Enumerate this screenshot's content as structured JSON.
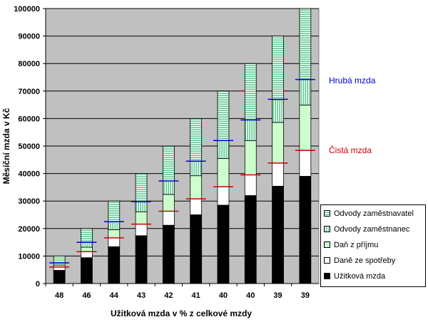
{
  "chart_data": {
    "type": "bar",
    "stacked": true,
    "ylabel": "Měsíční mzda v Kč",
    "xlabel": "Užitková mzda v % z celkové mzdy",
    "ylim": [
      0,
      100000
    ],
    "yticks": [
      0,
      10000,
      20000,
      30000,
      40000,
      50000,
      60000,
      70000,
      80000,
      90000,
      100000
    ],
    "categories": [
      "48",
      "46",
      "44",
      "43",
      "42",
      "41",
      "40",
      "40",
      "39",
      "39"
    ],
    "series": [
      {
        "name": "Užitková mzda",
        "color": "#000000",
        "pattern": "solid",
        "values": [
          4800,
          9400,
          13400,
          17400,
          21200,
          25000,
          28500,
          32000,
          35400,
          39000
        ]
      },
      {
        "name": "Daně ze spotřeby",
        "color": "#ffffff",
        "pattern": "solid",
        "values": [
          1200,
          2200,
          3200,
          4200,
          5100,
          5800,
          6700,
          7500,
          8400,
          9400
        ]
      },
      {
        "name": "Daň z příjmu",
        "color": "#ccffcc",
        "pattern": "solid",
        "values": [
          700,
          1600,
          3000,
          4500,
          6100,
          8400,
          10300,
          12500,
          14800,
          16500
        ]
      },
      {
        "name": "Odvody zaměstnanec",
        "color": "#66cc99",
        "pattern": "vertical",
        "values": [
          800,
          1800,
          2900,
          3600,
          4900,
          5300,
          6500,
          7500,
          8300,
          9300
        ]
      },
      {
        "name": "Odvody zaměstnavatel",
        "color": "#66cc99",
        "pattern": "horizontal",
        "values": [
          2500,
          5000,
          7500,
          10300,
          12700,
          15500,
          18000,
          20500,
          23100,
          25800
        ]
      }
    ],
    "markers": [
      {
        "name": "Hrubá mzda",
        "color": "#0000cc",
        "values": [
          7500,
          15000,
          22500,
          29800,
          37300,
          44500,
          52000,
          59500,
          67000,
          74200
        ]
      },
      {
        "name": "Čistá mzda",
        "color": "#cc0000",
        "values": [
          6000,
          11600,
          16600,
          21600,
          26300,
          30800,
          35200,
          39500,
          43800,
          48400
        ]
      }
    ],
    "legend_position": "bottom-right",
    "grid": true
  }
}
